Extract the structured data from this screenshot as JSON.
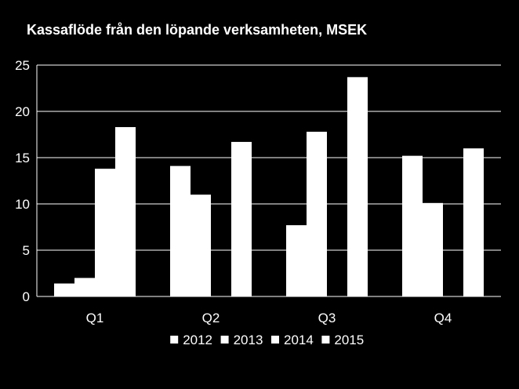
{
  "chart_data": {
    "type": "bar",
    "title": "Kassaflöde från den löpande verksamheten, MSEK",
    "xlabel": "",
    "ylabel": "",
    "categories": [
      "Q1",
      "Q2",
      "Q3",
      "Q4"
    ],
    "series": [
      {
        "name": "2012",
        "values": [
          1.4,
          14.1,
          7.7,
          15.2
        ]
      },
      {
        "name": "2013",
        "values": [
          2.0,
          11.0,
          17.8,
          10.1
        ]
      },
      {
        "name": "2014",
        "values": [
          13.8,
          null,
          null,
          null
        ]
      },
      {
        "name": "2015",
        "values": [
          18.3,
          16.7,
          23.7,
          16.0
        ]
      }
    ],
    "ylim": [
      0,
      25
    ],
    "yticks": [
      0,
      5,
      10,
      15,
      20,
      25
    ],
    "grid": true,
    "legend_position": "bottom",
    "colors": {
      "background": "#000000",
      "bars": "#ffffff",
      "gridlines": "#ffffff",
      "text": "#ffffff"
    }
  }
}
